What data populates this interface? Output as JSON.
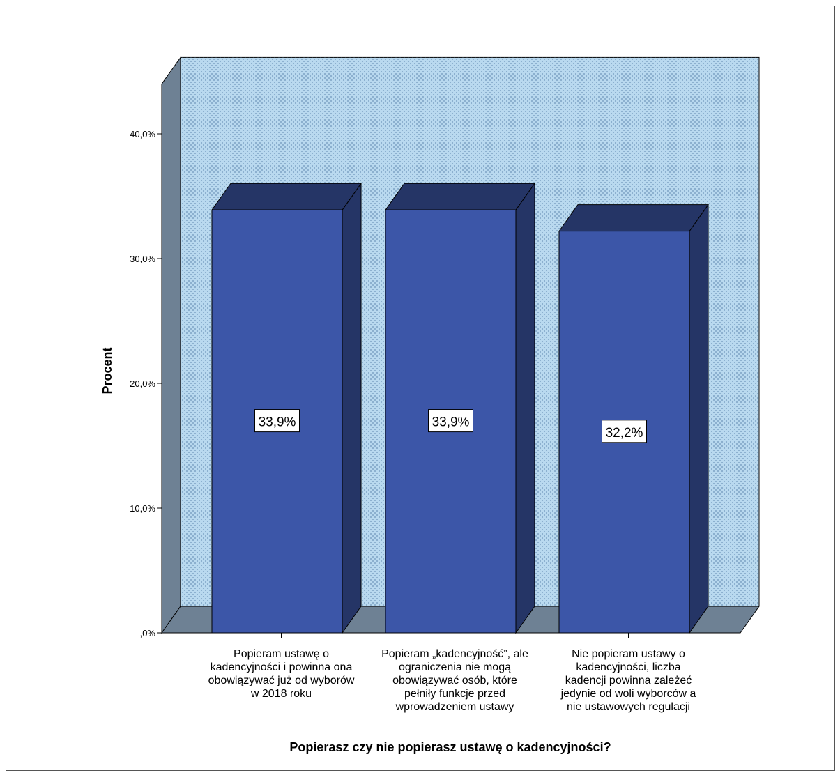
{
  "chart_data": {
    "type": "bar",
    "title": "",
    "xlabel": "Popierasz czy nie popierasz ustawę o kadencyjności?",
    "ylabel": "Procent",
    "ylim": [
      0,
      44
    ],
    "yticks": [
      0,
      10,
      20,
      30,
      40
    ],
    "ytick_labels": [
      ",0%",
      "10,0%",
      "20,0%",
      "30,0%",
      "40,0%"
    ],
    "categories": [
      [
        "Popieram ustawę o",
        "kadencyjności i powinna ona",
        "obowiązywać już od wyborów",
        "w 2018 roku"
      ],
      [
        "Popieram „kadencyjność”, ale",
        "ograniczenia nie mogą",
        "obowiązywać osób, które",
        "pełniły funkcje przed",
        "wprowadzeniem ustawy"
      ],
      [
        "Nie popieram ustawy o",
        "kadencyjności, liczba",
        "kadencji powinna zależeć",
        "jedynie od woli wyborców a",
        "nie ustawowych regulacji"
      ]
    ],
    "values": [
      33.9,
      33.9,
      32.2
    ],
    "data_labels": [
      "33,9%",
      "33,9%",
      "32,2%"
    ],
    "grid": false,
    "legend": "none",
    "style": "3d",
    "colors": {
      "bar_front": "#3c56a8",
      "bar_top": "#253566",
      "bar_side": "#253566",
      "back_wall": "#b9d9ef",
      "side_wall": "#6e8194",
      "floor": "#6e8194"
    }
  }
}
